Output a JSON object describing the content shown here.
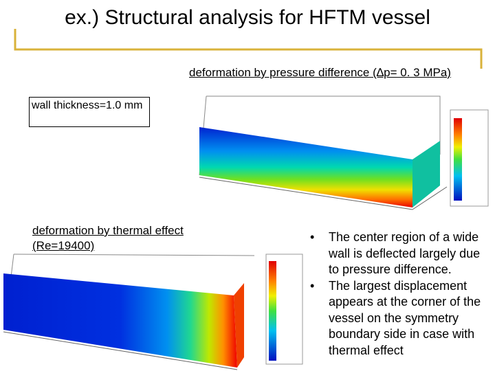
{
  "header": {
    "title": "ex.) Structural analysis for HFTM vessel"
  },
  "pressure": {
    "caption": "deformation by pressure difference (∆p= 0. 3 MPa)"
  },
  "thickness": {
    "label": "wall thickness=1.0 mm"
  },
  "thermal": {
    "caption": "deformation by thermal effect (Re=19400)"
  },
  "bullets": [
    "The center region of a wide wall is deflected largely due to pressure difference.",
    "The largest displacement appears at the corner of the vessel on the symmetry boundary side in case with thermal effect"
  ]
}
